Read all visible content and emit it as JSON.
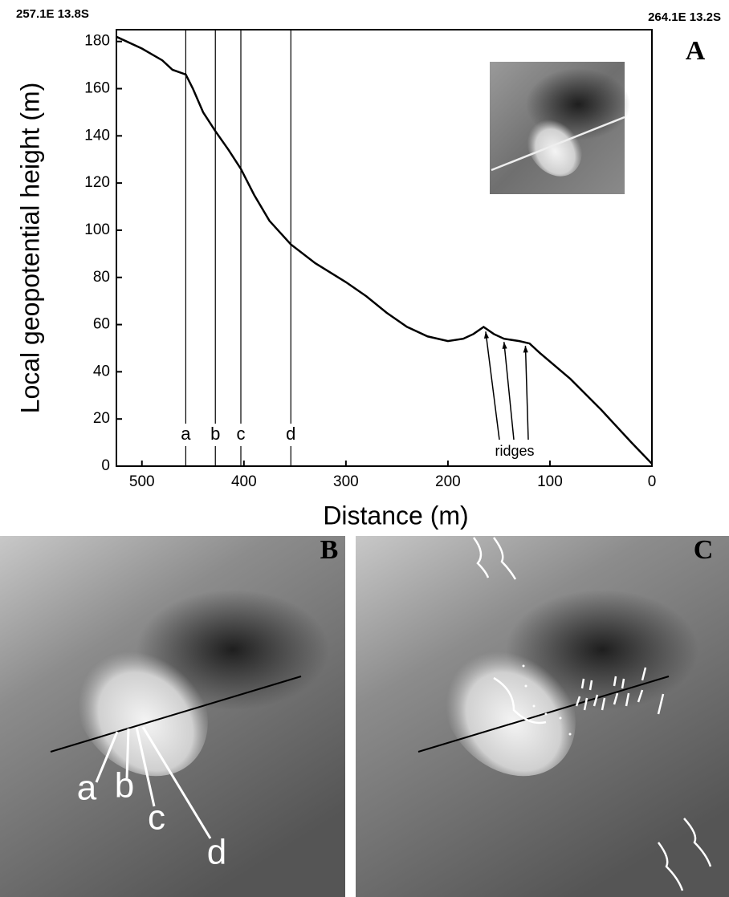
{
  "header": {
    "left": "257.1E 13.8S",
    "right": "264.1E 13.2S"
  },
  "panel_labels": [
    "A",
    "B",
    "C"
  ],
  "chart_data": {
    "type": "line",
    "ylabel": "Local geopotential height (m)",
    "xlabel": "Distance (m)",
    "x": [
      525,
      500,
      480,
      470,
      457,
      450,
      440,
      428,
      415,
      403,
      390,
      375,
      354,
      330,
      300,
      280,
      260,
      240,
      220,
      200,
      185,
      175,
      165,
      155,
      145,
      130,
      120,
      110,
      80,
      50,
      20,
      0
    ],
    "values": [
      182,
      177,
      172,
      168,
      166,
      160,
      150,
      142,
      134,
      126,
      115,
      104,
      94,
      86,
      78,
      72,
      65,
      59,
      55,
      53,
      54,
      56,
      59,
      56,
      54,
      53,
      52,
      48,
      37,
      24,
      10,
      1
    ],
    "color": "#000000",
    "xlim": [
      525,
      0
    ],
    "xticks": [
      500,
      400,
      300,
      200,
      100,
      0
    ],
    "ylim": [
      0,
      185
    ],
    "yticks": [
      0,
      20,
      40,
      60,
      80,
      100,
      120,
      140,
      160,
      180
    ],
    "markers": [
      {
        "label": "a",
        "x": 457
      },
      {
        "label": "b",
        "x": 428
      },
      {
        "label": "c",
        "x": 403
      },
      {
        "label": "d",
        "x": 354
      }
    ],
    "ridges": {
      "label": "ridges",
      "x": [
        163,
        145,
        124
      ]
    }
  }
}
